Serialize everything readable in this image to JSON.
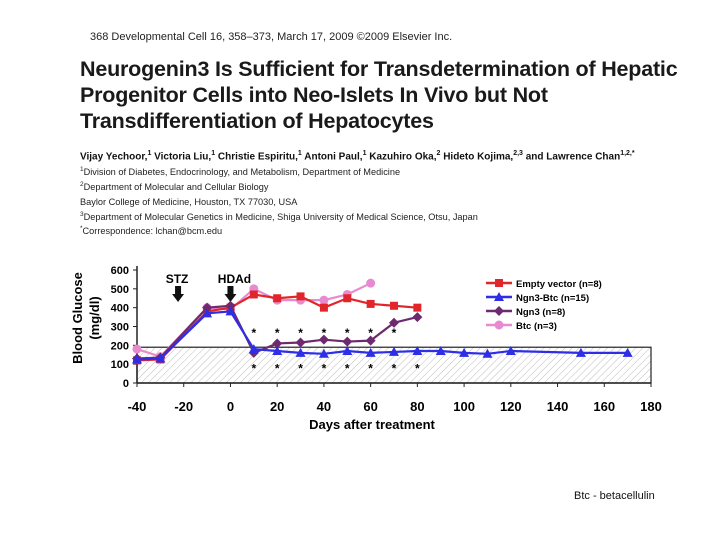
{
  "header": {
    "text": "368  Developmental Cell 16, 358–373, March 17, 2009 ©2009 Elsevier Inc."
  },
  "paper": {
    "title": "Neurogenin3 Is Sufficient for Transdetermination of Hepatic Progenitor Cells into Neo-Islets In Vivo but Not Transdifferentiation of Hepatocytes",
    "authors": [
      {
        "name": "Vijay Yechoor,",
        "sup": "1"
      },
      {
        "name": "Victoria Liu,",
        "sup": "1"
      },
      {
        "name": "Christie Espiritu,",
        "sup": "1"
      },
      {
        "name": "Antoni Paul,",
        "sup": "1"
      },
      {
        "name": "Kazuhiro Oka,",
        "sup": "2"
      },
      {
        "name": "Hideto Kojima,",
        "sup": "2,3"
      },
      {
        "name": "and Lawrence Chan",
        "sup": "1,2,*"
      }
    ],
    "affiliations": [
      {
        "sup": "1",
        "text": "Division of Diabetes, Endocrinology, and Metabolism, Department of Medicine"
      },
      {
        "sup": "2",
        "text": "Department of Molecular and Cellular Biology"
      },
      {
        "sup": "",
        "text": "Baylor College of Medicine, Houston, TX 77030, USA"
      },
      {
        "sup": "3",
        "text": "Department of Molecular Genetics in Medicine, Shiga University of Medical Science, Otsu, Japan"
      },
      {
        "sup": "*",
        "text": "Correspondence: lchan@bcm.edu"
      }
    ]
  },
  "chart_data": {
    "type": "line",
    "xlabel": "Days after treatment",
    "ylabel": "Blood Glucose (mg/dl)",
    "xlim": [
      -40,
      180
    ],
    "ylim": [
      0,
      600
    ],
    "xticks": [
      -40,
      -20,
      0,
      20,
      40,
      60,
      80,
      100,
      120,
      140,
      160,
      180
    ],
    "yticks": [
      0,
      100,
      200,
      300,
      400,
      500,
      600
    ],
    "normal_range_band": [
      0,
      190
    ],
    "grid": false,
    "legend_position": "top-right",
    "annotations": [
      {
        "text": "STZ",
        "x": -22
      },
      {
        "text": "HDAd",
        "x": 0
      }
    ],
    "significance_marker": "*",
    "significance_upper_x": [
      10,
      20,
      30,
      40,
      50,
      60,
      70
    ],
    "significance_lower_x": [
      10,
      20,
      30,
      40,
      50,
      60,
      70,
      80
    ],
    "series": [
      {
        "name": "Empty vector (n=8)",
        "color": "#e0262b",
        "marker": "square",
        "x": [
          -40,
          -30,
          -10,
          0,
          10,
          20,
          30,
          40,
          50,
          60,
          70,
          80
        ],
        "y": [
          120,
          125,
          380,
          400,
          470,
          450,
          460,
          400,
          450,
          420,
          410,
          400
        ]
      },
      {
        "name": "Ngn3-Btc (n=15)",
        "color": "#2d2ee6",
        "marker": "triangle",
        "x": [
          -40,
          -30,
          -10,
          0,
          10,
          20,
          30,
          40,
          50,
          60,
          70,
          80,
          90,
          100,
          110,
          120,
          150,
          170
        ],
        "y": [
          125,
          130,
          370,
          380,
          180,
          170,
          160,
          155,
          170,
          160,
          165,
          170,
          170,
          160,
          155,
          170,
          160,
          160
        ]
      },
      {
        "name": "Ngn3 (n=8)",
        "color": "#6e2a6e",
        "marker": "diamond",
        "x": [
          -40,
          -30,
          -10,
          0,
          10,
          20,
          30,
          40,
          50,
          60,
          70,
          80
        ],
        "y": [
          130,
          135,
          400,
          410,
          160,
          210,
          215,
          230,
          220,
          225,
          320,
          350
        ]
      },
      {
        "name": "Btc (n=3)",
        "color": "#e88ad0",
        "marker": "circle",
        "x": [
          -40,
          -30,
          -10,
          0,
          10,
          20,
          30,
          40,
          50,
          60
        ],
        "y": [
          180,
          140,
          400,
          390,
          500,
          440,
          440,
          440,
          470,
          530
        ]
      }
    ]
  },
  "caption": {
    "text": "Btc - betacellulin"
  }
}
